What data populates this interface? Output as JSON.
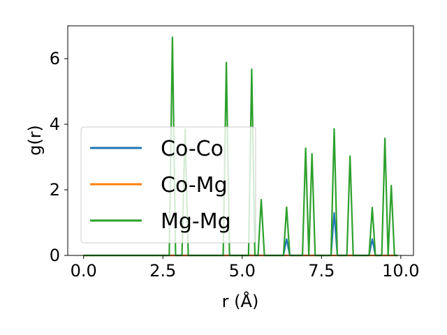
{
  "chart_data": {
    "type": "line",
    "xlabel": "r (Å)",
    "ylabel": "g(r)",
    "xlim": [
      -0.5,
      10.4
    ],
    "ylim": [
      0,
      7
    ],
    "xticks": [
      "0.0",
      "2.5",
      "5.0",
      "7.5",
      "10.0"
    ],
    "yticks": [
      "0",
      "2",
      "4",
      "6"
    ],
    "xtick_values": [
      0,
      2.5,
      5,
      7.5,
      10
    ],
    "ytick_values": [
      0,
      2,
      4,
      6
    ],
    "legend_position": "center-left",
    "grid": false,
    "x": [
      0.0,
      0.1,
      0.2,
      0.3,
      0.4,
      0.5,
      0.6,
      0.7,
      0.8,
      0.9,
      1.0,
      1.1,
      1.2,
      1.3,
      1.4,
      1.5,
      1.6,
      1.7,
      1.8,
      1.9,
      2.0,
      2.1,
      2.2,
      2.3,
      2.4,
      2.5,
      2.6,
      2.7,
      2.8,
      2.9,
      3.0,
      3.1,
      3.2,
      3.3,
      3.4,
      3.5,
      3.6,
      3.7,
      3.8,
      3.9,
      4.0,
      4.1,
      4.2,
      4.3,
      4.4,
      4.5,
      4.6,
      4.7,
      4.8,
      4.9,
      5.0,
      5.1,
      5.2,
      5.3,
      5.4,
      5.5,
      5.6,
      5.7,
      5.8,
      5.9,
      6.0,
      6.1,
      6.2,
      6.3,
      6.4,
      6.5,
      6.6,
      6.7,
      6.8,
      6.9,
      7.0,
      7.1,
      7.2,
      7.3,
      7.4,
      7.5,
      7.6,
      7.7,
      7.8,
      7.9,
      8.0,
      8.1,
      8.2,
      8.3,
      8.4,
      8.5,
      8.6,
      8.7,
      8.8,
      8.9,
      9.0,
      9.1,
      9.2,
      9.3,
      9.4,
      9.5,
      9.6,
      9.7,
      9.8,
      9.9
    ],
    "series": [
      {
        "name": "Co-Co",
        "color": "#1f77b4",
        "values": [
          0,
          0,
          0,
          0,
          0,
          0,
          0,
          0,
          0,
          0,
          0,
          0,
          0,
          0,
          0,
          0,
          0,
          0,
          0,
          0,
          0,
          0,
          0,
          0,
          0,
          0,
          0,
          0,
          0,
          0,
          0,
          0,
          0,
          0,
          0,
          0,
          0,
          0,
          0,
          0,
          0,
          0,
          0,
          0,
          0,
          0,
          0,
          0,
          0,
          0,
          0,
          0,
          0,
          0,
          0,
          0,
          0,
          0,
          0,
          0,
          0,
          0,
          0,
          0,
          0.5,
          0,
          0,
          0,
          0,
          0,
          0,
          0,
          0,
          0,
          0,
          0,
          0,
          0,
          0,
          1.3,
          0,
          0,
          0,
          0,
          0,
          0,
          0,
          0,
          0,
          0,
          0,
          0.5,
          0,
          0,
          0,
          0,
          0,
          0,
          0,
          0
        ]
      },
      {
        "name": "Co-Mg",
        "color": "#ff7f0e",
        "values": [
          0,
          0,
          0,
          0,
          0,
          0,
          0,
          0,
          0,
          0,
          0,
          0,
          0,
          0,
          0,
          0,
          0,
          0,
          0,
          0,
          0,
          0,
          0,
          0,
          0,
          0,
          0,
          0,
          0,
          0,
          0,
          0,
          0,
          0,
          0,
          0,
          0,
          0,
          0,
          0,
          0,
          0,
          0,
          0,
          0,
          0,
          0,
          0,
          0,
          0,
          0,
          0,
          0,
          0,
          0,
          0,
          0,
          0,
          0,
          0,
          0,
          0,
          0,
          0,
          0,
          0,
          0,
          0,
          0,
          0,
          0,
          0,
          0,
          0,
          0,
          0,
          0,
          0,
          0,
          0,
          0,
          0,
          0,
          0,
          0,
          0,
          0,
          0,
          0,
          0,
          0,
          0,
          0,
          0,
          0,
          0,
          0,
          0,
          0,
          0
        ]
      },
      {
        "name": "Mg-Mg",
        "color": "#2ca02c",
        "values": [
          0,
          0,
          0,
          0,
          0,
          0,
          0,
          0,
          0,
          0,
          0,
          0,
          0,
          0,
          0,
          0,
          0,
          0,
          0,
          0,
          0,
          0,
          0,
          0,
          0,
          0,
          0,
          0,
          6.65,
          0,
          0,
          0,
          3.85,
          0,
          0,
          0,
          0,
          0,
          0,
          0,
          0,
          0,
          0,
          0,
          0,
          5.88,
          0,
          0,
          0,
          0,
          0,
          0,
          0,
          5.68,
          0,
          0,
          1.7,
          0,
          0,
          0,
          0,
          0,
          0,
          0,
          1.47,
          0,
          0,
          0,
          0,
          0,
          3.27,
          0,
          3.1,
          0,
          0,
          0,
          0,
          0,
          0,
          3.86,
          0,
          0,
          0,
          0,
          3.03,
          0,
          0,
          0,
          0,
          0,
          0,
          1.46,
          0,
          0,
          0,
          3.57,
          0,
          2.13,
          0,
          0
        ]
      }
    ]
  }
}
